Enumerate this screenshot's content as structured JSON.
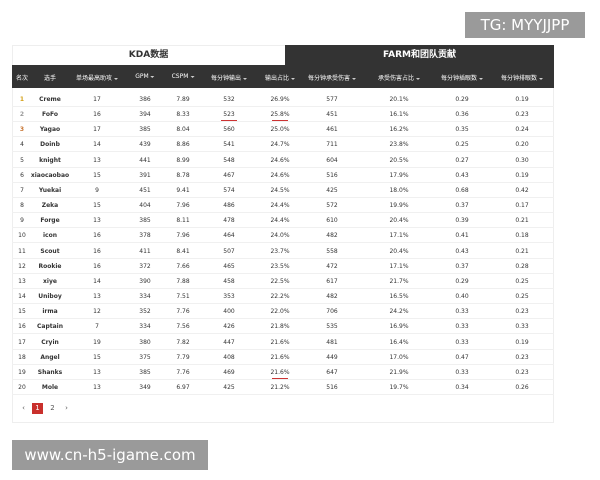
{
  "watermark_top": "TG: MYYJJPP",
  "watermark_bottom": "www.cn-h5-igame.com",
  "tabs": [
    "KDA数据",
    "FARM和团队贡献"
  ],
  "table": {
    "headers": [
      "名次",
      "选手",
      "单场最高助攻",
      "GPM",
      "CSPM",
      "每分钟输出",
      "输出占比",
      "每分钟承受伤害",
      "承受伤害占比",
      "每分钟插眼数",
      "每分钟排眼数"
    ],
    "rows": [
      [
        "1",
        "Creme",
        "17",
        "386",
        "7.89",
        "532",
        "26.9%",
        "577",
        "20.1%",
        "0.29",
        "0.19"
      ],
      [
        "2",
        "FoFo",
        "16",
        "394",
        "8.33",
        "523",
        "25.8%",
        "451",
        "16.1%",
        "0.36",
        "0.23"
      ],
      [
        "3",
        "Yagao",
        "17",
        "385",
        "8.04",
        "560",
        "25.0%",
        "461",
        "16.2%",
        "0.35",
        "0.24"
      ],
      [
        "4",
        "Doinb",
        "14",
        "439",
        "8.86",
        "541",
        "24.7%",
        "711",
        "23.8%",
        "0.25",
        "0.20"
      ],
      [
        "5",
        "knight",
        "13",
        "441",
        "8.99",
        "548",
        "24.6%",
        "604",
        "20.5%",
        "0.27",
        "0.30"
      ],
      [
        "6",
        "xiaocaobao",
        "15",
        "391",
        "8.78",
        "467",
        "24.6%",
        "516",
        "17.9%",
        "0.43",
        "0.19"
      ],
      [
        "7",
        "Yuekai",
        "9",
        "451",
        "9.41",
        "574",
        "24.5%",
        "425",
        "18.0%",
        "0.68",
        "0.42"
      ],
      [
        "8",
        "Zeka",
        "15",
        "404",
        "7.96",
        "486",
        "24.4%",
        "572",
        "19.9%",
        "0.37",
        "0.17"
      ],
      [
        "9",
        "Forge",
        "13",
        "385",
        "8.11",
        "478",
        "24.4%",
        "610",
        "20.4%",
        "0.39",
        "0.21"
      ],
      [
        "10",
        "icon",
        "16",
        "378",
        "7.96",
        "464",
        "24.0%",
        "482",
        "17.1%",
        "0.41",
        "0.18"
      ],
      [
        "11",
        "Scout",
        "16",
        "411",
        "8.41",
        "507",
        "23.7%",
        "558",
        "20.4%",
        "0.43",
        "0.21"
      ],
      [
        "12",
        "Rookie",
        "16",
        "372",
        "7.66",
        "465",
        "23.5%",
        "472",
        "17.1%",
        "0.37",
        "0.28"
      ],
      [
        "13",
        "xiye",
        "14",
        "390",
        "7.88",
        "458",
        "22.5%",
        "617",
        "21.7%",
        "0.29",
        "0.25"
      ],
      [
        "14",
        "Uniboy",
        "13",
        "334",
        "7.51",
        "353",
        "22.2%",
        "482",
        "16.5%",
        "0.40",
        "0.25"
      ],
      [
        "15",
        "irma",
        "12",
        "352",
        "7.76",
        "400",
        "22.0%",
        "706",
        "24.2%",
        "0.33",
        "0.23"
      ],
      [
        "16",
        "Captain",
        "7",
        "334",
        "7.56",
        "426",
        "21.8%",
        "535",
        "16.9%",
        "0.33",
        "0.33"
      ],
      [
        "17",
        "Cryin",
        "19",
        "380",
        "7.82",
        "447",
        "21.6%",
        "481",
        "16.4%",
        "0.33",
        "0.19"
      ],
      [
        "18",
        "Angel",
        "15",
        "375",
        "7.79",
        "408",
        "21.6%",
        "449",
        "17.0%",
        "0.47",
        "0.23"
      ],
      [
        "19",
        "Shanks",
        "13",
        "385",
        "7.76",
        "469",
        "21.6%",
        "647",
        "21.9%",
        "0.33",
        "0.23"
      ],
      [
        "20",
        "Mole",
        "13",
        "349",
        "6.97",
        "425",
        "21.2%",
        "516",
        "19.7%",
        "0.34",
        "0.26"
      ]
    ]
  },
  "pagination": [
    "1",
    "2"
  ]
}
